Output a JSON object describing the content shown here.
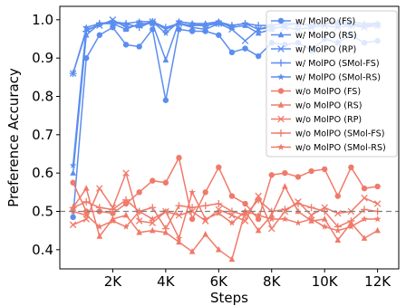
{
  "chart_data": {
    "type": "line",
    "title": "",
    "xlabel": "Steps",
    "ylabel": "Preference Accuracy",
    "xlim": [
      0,
      12800
    ],
    "ylim": [
      0.35,
      1.035
    ],
    "xticks": [
      2000,
      4000,
      6000,
      8000,
      10000,
      12000
    ],
    "xtick_labels": [
      "2K",
      "4K",
      "6K",
      "8K",
      "10K",
      "12K"
    ],
    "yticks": [
      0.4,
      0.5,
      0.6,
      0.7,
      0.8,
      0.9,
      1.0
    ],
    "ytick_labels": [
      "0.4",
      "0.5",
      "0.6",
      "0.7",
      "0.8",
      "0.9",
      "1.0"
    ],
    "grid": false,
    "legend_position": "top-right",
    "reference_line": {
      "y": 0.5,
      "style": "dashed",
      "color": "#808080"
    },
    "x": [
      500,
      1000,
      1500,
      2000,
      2500,
      3000,
      3500,
      4000,
      4500,
      5000,
      5500,
      6000,
      6500,
      7000,
      7500,
      8000,
      8500,
      9000,
      9500,
      10000,
      10500,
      11000,
      11500,
      12000
    ],
    "series": [
      {
        "name": "w/ MolPO (FS)",
        "color": "#5b8def",
        "marker": "circle",
        "values": [
          0.485,
          0.9,
          0.96,
          0.98,
          0.935,
          0.93,
          0.975,
          0.79,
          0.975,
          0.97,
          0.97,
          0.96,
          0.915,
          0.925,
          0.905,
          0.94,
          0.935,
          0.94,
          0.92,
          0.95,
          0.94,
          0.96,
          0.94,
          0.945
        ]
      },
      {
        "name": "w/ MolPO (RS)",
        "color": "#5b8def",
        "marker": "triangle",
        "values": [
          0.6,
          0.96,
          0.99,
          0.99,
          0.975,
          0.99,
          0.99,
          0.895,
          0.995,
          0.99,
          0.99,
          0.995,
          0.98,
          0.985,
          0.965,
          0.975,
          0.985,
          0.99,
          0.985,
          0.99,
          0.995,
          0.995,
          0.99,
          0.99
        ]
      },
      {
        "name": "w/ MolPO (RP)",
        "color": "#5b8def",
        "marker": "x",
        "values": [
          0.86,
          0.975,
          0.985,
          1.0,
          0.98,
          0.985,
          0.995,
          0.975,
          0.99,
          0.98,
          0.975,
          0.99,
          0.975,
          0.945,
          0.975,
          0.98,
          0.98,
          0.975,
          0.98,
          0.985,
          0.98,
          0.985,
          0.98,
          0.985
        ]
      },
      {
        "name": "w/ MolPO (SMol-FS)",
        "color": "#5b8def",
        "marker": "plus",
        "values": [
          0.86,
          0.97,
          0.99,
          0.99,
          0.99,
          0.98,
          0.995,
          0.98,
          0.99,
          0.985,
          0.985,
          0.99,
          0.985,
          0.99,
          0.985,
          0.985,
          0.99,
          0.99,
          0.985,
          0.99,
          0.99,
          0.985,
          0.985,
          0.985
        ]
      },
      {
        "name": "w/ MolPO (SMol-RS)",
        "color": "#5b8def",
        "marker": "star",
        "values": [
          0.62,
          0.98,
          0.99,
          0.995,
          0.99,
          0.995,
          0.995,
          0.965,
          0.995,
          0.99,
          0.985,
          0.995,
          0.985,
          0.99,
          0.975,
          0.985,
          0.99,
          0.99,
          0.985,
          0.99,
          0.99,
          0.99,
          0.985,
          0.99
        ]
      },
      {
        "name": "w/o MolPO (FS)",
        "color": "#f07a6a",
        "marker": "circle",
        "values": [
          0.575,
          0.5,
          0.5,
          0.495,
          0.52,
          0.55,
          0.58,
          0.575,
          0.64,
          0.48,
          0.55,
          0.615,
          0.54,
          0.52,
          0.48,
          0.595,
          0.6,
          0.59,
          0.605,
          0.61,
          0.54,
          0.615,
          0.56,
          0.565
        ]
      },
      {
        "name": "w/o MolPO (RS)",
        "color": "#f07a6a",
        "marker": "triangle",
        "values": [
          0.51,
          0.56,
          0.435,
          0.48,
          0.49,
          0.445,
          0.45,
          0.445,
          0.42,
          0.395,
          0.44,
          0.4,
          0.375,
          0.5,
          0.45,
          0.49,
          0.565,
          0.5,
          0.475,
          0.48,
          0.425,
          0.47,
          0.43,
          0.45
        ]
      },
      {
        "name": "w/o MolPO (RP)",
        "color": "#f07a6a",
        "marker": "x",
        "values": [
          0.465,
          0.48,
          0.56,
          0.51,
          0.6,
          0.475,
          0.47,
          0.5,
          0.49,
          0.5,
          0.475,
          0.505,
          0.49,
          0.475,
          0.54,
          0.455,
          0.5,
          0.525,
          0.49,
          0.51,
          0.495,
          0.5,
          0.535,
          0.52
        ]
      },
      {
        "name": "w/o MolPO (SMol-FS)",
        "color": "#f07a6a",
        "marker": "plus",
        "values": [
          0.51,
          0.525,
          0.51,
          0.505,
          0.53,
          0.5,
          0.51,
          0.455,
          0.515,
          0.51,
          0.515,
          0.52,
          0.5,
          0.49,
          0.53,
          0.5,
          0.505,
          0.52,
          0.51,
          0.5,
          0.46,
          0.475,
          0.505,
          0.5
        ]
      },
      {
        "name": "w/o MolPO (SMol-RS)",
        "color": "#f07a6a",
        "marker": "star",
        "values": [
          0.5,
          0.49,
          0.46,
          0.475,
          0.46,
          0.5,
          0.48,
          0.5,
          0.43,
          0.55,
          0.48,
          0.495,
          0.47,
          0.5,
          0.49,
          0.48,
          0.48,
          0.47,
          0.48,
          0.46,
          0.45,
          0.46,
          0.48,
          0.48
        ]
      }
    ]
  }
}
